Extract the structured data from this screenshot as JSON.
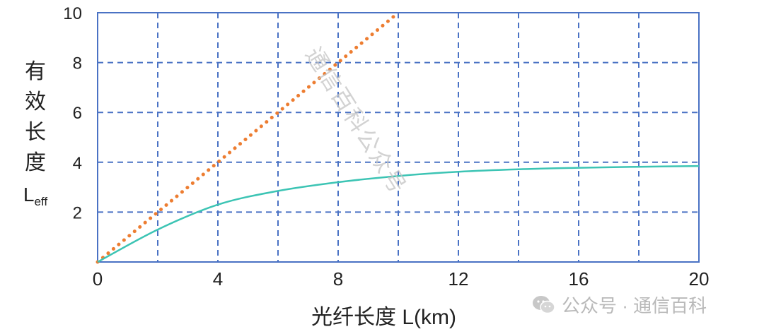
{
  "chart_data": {
    "type": "line",
    "xlabel": "光纤长度 L(km)",
    "ylabel_chars": [
      "有",
      "效",
      "长",
      "度"
    ],
    "ylabel_symbol": "L",
    "ylabel_subscript": "eff",
    "xlim": [
      0,
      20
    ],
    "ylim": [
      0,
      10
    ],
    "x_ticks": [
      0,
      4,
      8,
      12,
      16,
      20
    ],
    "y_ticks": [
      2,
      4,
      6,
      8,
      10
    ],
    "grid": true,
    "series": [
      {
        "style": "dotted",
        "color": "#ed7d31",
        "x": [
          0,
          10
        ],
        "y": [
          0,
          10
        ]
      },
      {
        "style": "solid",
        "color": "#3cc4b4",
        "x": [
          0,
          2,
          4,
          6,
          8,
          10,
          12,
          14,
          16,
          18,
          20
        ],
        "y": [
          0,
          1.3,
          2.3,
          2.85,
          3.2,
          3.45,
          3.62,
          3.72,
          3.78,
          3.82,
          3.85
        ]
      }
    ]
  },
  "watermark": {
    "diagonal": "通信百科公众号",
    "bottom": "公众号 · 通信百科",
    "icon": "wechat-icon"
  }
}
